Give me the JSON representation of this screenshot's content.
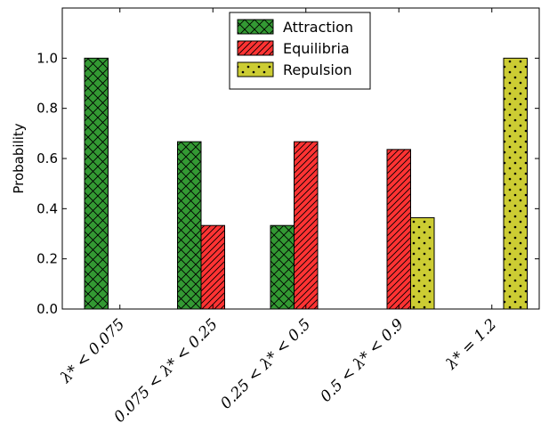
{
  "chart_data": {
    "type": "bar",
    "title": "",
    "xlabel": "",
    "ylabel": "Probability",
    "ylim": [
      0,
      1.2
    ],
    "yticks": [
      0.0,
      0.2,
      0.4,
      0.6,
      0.8,
      1.0
    ],
    "ytick_labels": [
      "0.0",
      "0.2",
      "0.4",
      "0.6",
      "0.8",
      "1.0"
    ],
    "categories": [
      "λ* < 0.075",
      "0.075 < λ* < 0.25",
      "0.25 < λ* < 0.5",
      "0.5 < λ* < 0.9",
      "λ* = 1.2"
    ],
    "series": [
      {
        "name": "Attraction",
        "values": [
          1.0,
          0.667,
          0.333,
          0.0,
          0.0
        ],
        "color": "#339933",
        "hatch": "cross"
      },
      {
        "name": "Equilibria",
        "values": [
          0.0,
          0.333,
          0.667,
          0.636,
          0.0
        ],
        "color": "#ff3333",
        "hatch": "diagonal"
      },
      {
        "name": "Repulsion",
        "values": [
          0.0,
          0.0,
          0.0,
          0.364,
          1.0
        ],
        "color": "#cccc33",
        "hatch": "dots"
      }
    ],
    "legend_position": "top-center",
    "grid": false
  }
}
